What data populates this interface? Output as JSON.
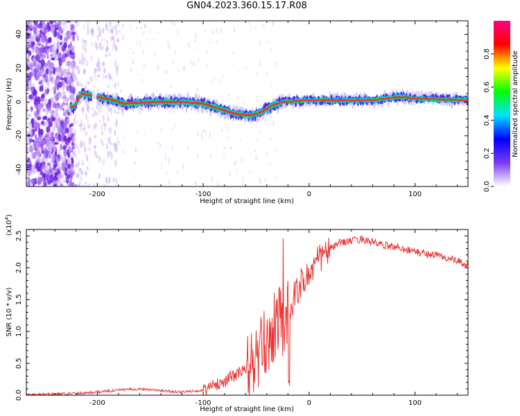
{
  "title": "GN04.2023.360.15.17.R08",
  "chart_data": [
    {
      "type": "heatmap",
      "xlabel": "Height of straight line (km)",
      "ylabel": "Frequency (Hz)",
      "xlim": [
        -267,
        150
      ],
      "ylim": [
        -50,
        48
      ],
      "xticks": [
        -200,
        -100,
        0,
        100
      ],
      "yticks": [
        -40,
        -20,
        0,
        20,
        40
      ],
      "grid": false,
      "ridge": [
        {
          "x": -222,
          "y": -3
        },
        {
          "x": -215,
          "y": 5
        },
        {
          "x": -200,
          "y": 3
        },
        {
          "x": -185,
          "y": 1
        },
        {
          "x": -175,
          "y": -1
        },
        {
          "x": -150,
          "y": 0
        },
        {
          "x": -120,
          "y": 0
        },
        {
          "x": -100,
          "y": -1
        },
        {
          "x": -85,
          "y": -4
        },
        {
          "x": -70,
          "y": -7
        },
        {
          "x": -55,
          "y": -8
        },
        {
          "x": -45,
          "y": -6
        },
        {
          "x": -35,
          "y": -2
        },
        {
          "x": -25,
          "y": 0
        },
        {
          "x": 0,
          "y": 1
        },
        {
          "x": 30,
          "y": 1
        },
        {
          "x": 60,
          "y": 1
        },
        {
          "x": 85,
          "y": 3
        },
        {
          "x": 100,
          "y": 2
        },
        {
          "x": 150,
          "y": 1
        }
      ],
      "colorbar": {
        "label": "Normalized spectral amplitude",
        "range": [
          0.0,
          1.0
        ],
        "ticks": [
          "0.0",
          "0.2",
          "0.4",
          "0.6",
          "0.8"
        ],
        "colors": [
          "#ffffff",
          "#7a3cf0",
          "#0000ff",
          "#00e0ff",
          "#00ff00",
          "#ffff00",
          "#ff0000",
          "#ff0080"
        ]
      }
    },
    {
      "type": "line",
      "xlabel": "Height of straight line (km)",
      "ylabel": "SNR (10 * v/v)",
      "scale_label": "(x10",
      "scale_exp": "4",
      "scale_close": ")",
      "xlim": [
        -267,
        150
      ],
      "ylim": [
        0.0,
        2.6
      ],
      "xticks": [
        -200,
        -100,
        0,
        100
      ],
      "yticks": [
        "0.0",
        "0.5",
        "1.0",
        "1.5",
        "2.0",
        "2.5"
      ],
      "color": "#e8312f",
      "series": [
        {
          "x": [
            -267,
            -240,
            -220,
            -200,
            -180,
            -160,
            -150,
            -140,
            -120,
            -100,
            -90,
            -80,
            -70,
            -60,
            -50,
            -45,
            -40,
            -35,
            -30,
            -25,
            -20,
            -15,
            -10,
            -5,
            0,
            10,
            20,
            30,
            40,
            50,
            60,
            70,
            80,
            90,
            100,
            110,
            120,
            130,
            140,
            150
          ],
          "y": [
            0.01,
            0.02,
            0.03,
            0.05,
            0.08,
            0.1,
            0.09,
            0.07,
            0.05,
            0.08,
            0.15,
            0.22,
            0.32,
            0.4,
            0.55,
            0.7,
            0.85,
            1.0,
            1.2,
            1.15,
            1.35,
            1.5,
            1.7,
            1.8,
            1.9,
            2.15,
            2.3,
            2.4,
            2.42,
            2.45,
            2.4,
            2.35,
            2.33,
            2.3,
            2.25,
            2.22,
            2.2,
            2.15,
            2.1,
            2.04
          ]
        }
      ]
    }
  ]
}
